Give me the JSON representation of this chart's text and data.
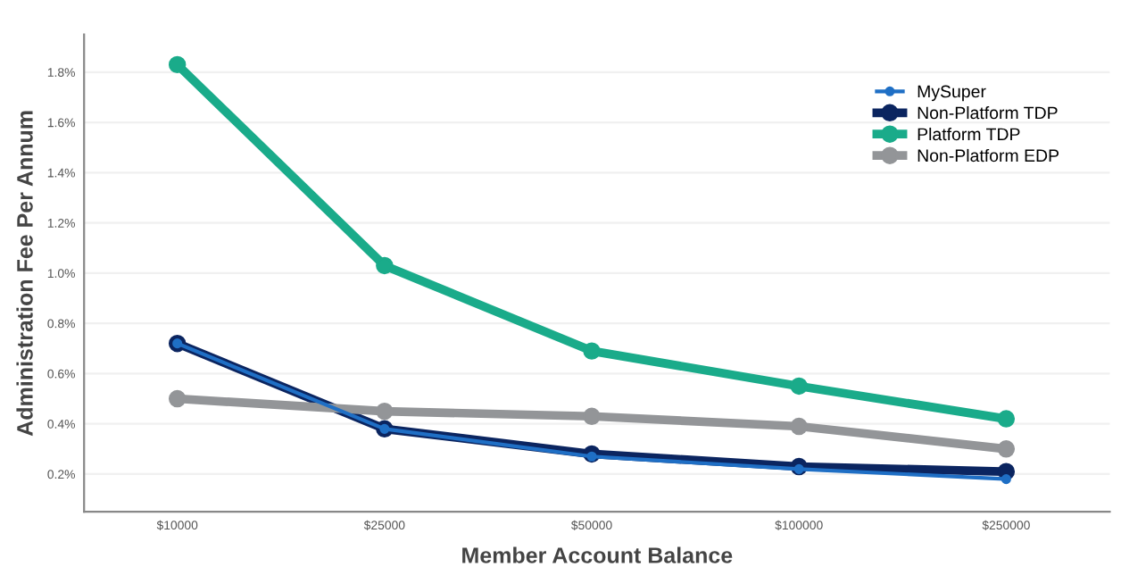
{
  "chart_data": {
    "type": "line",
    "xlabel": "Member Account Balance",
    "ylabel": "Administration Fee Per Annum",
    "categories": [
      "$10000",
      "$25000",
      "$50000",
      "$100000",
      "$250000"
    ],
    "series": [
      {
        "name": "MySuper",
        "color": "#1f6fc5",
        "values": [
          0.72,
          0.38,
          0.27,
          0.22,
          0.18
        ]
      },
      {
        "name": "Non-Platform TDP",
        "color": "#0b2560",
        "values": [
          0.72,
          0.38,
          0.28,
          0.23,
          0.21
        ]
      },
      {
        "name": "Platform TDP",
        "color": "#1aab8a",
        "values": [
          1.83,
          1.03,
          0.69,
          0.55,
          0.42
        ]
      },
      {
        "name": "Non-Platform EDP",
        "color": "#939598",
        "values": [
          0.5,
          0.45,
          0.43,
          0.39,
          0.3
        ]
      }
    ],
    "ylim": [
      0.05,
      1.95
    ],
    "yticks": [
      {
        "value": 0.2,
        "label": "0.2%"
      },
      {
        "value": 0.4,
        "label": "0.4%"
      },
      {
        "value": 0.6,
        "label": "0.6%"
      },
      {
        "value": 0.8,
        "label": "0.8%"
      },
      {
        "value": 1.0,
        "label": "1.0%"
      },
      {
        "value": 1.2,
        "label": "1.2%"
      },
      {
        "value": 1.4,
        "label": "1.4%"
      },
      {
        "value": 1.6,
        "label": "1.6%"
      },
      {
        "value": 1.8,
        "label": "1.8%"
      }
    ],
    "grid": "y",
    "legend": "top right",
    "marker": "circle",
    "line_style": "solid"
  }
}
